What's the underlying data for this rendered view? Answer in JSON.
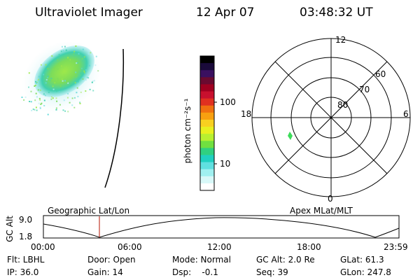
{
  "header": {
    "title": "Ultraviolet Imager",
    "date": "12 Apr 07",
    "time": "03:48:32 UT"
  },
  "colorbar": {
    "label": "photon cm⁻²s⁻¹",
    "ticks": [
      "100",
      "10"
    ],
    "colors": [
      "#000000",
      "#1a0a3a",
      "#3a1060",
      "#6a0a30",
      "#a00020",
      "#c8102e",
      "#e03020",
      "#f07010",
      "#f8a010",
      "#f8d020",
      "#e8f020",
      "#b8f030",
      "#70e040",
      "#30d080",
      "#20d0c0",
      "#60e0e0",
      "#a0f0f0",
      "#d8f8f8",
      "#ffffff"
    ]
  },
  "polar": {
    "mlt_labels": [
      "12",
      "18",
      "6",
      "0"
    ],
    "lat_labels": [
      "60",
      "70",
      "80"
    ]
  },
  "timeline": {
    "left_label": "Geographic Lat/Lon",
    "right_label": "Apex MLat/MLT",
    "axis_title": "GC Alt",
    "y_ticks": [
      "9.0",
      "1.8"
    ],
    "x_ticks": [
      "00:00",
      "06:00",
      "12:00",
      "18:00",
      "23:59"
    ],
    "marker_color": "#c0392b"
  },
  "info": {
    "filter": "Flt: LBHL",
    "door": "Door: Open",
    "mode": "Mode: Normal",
    "gc_alt": "GC Alt: 2.0 Re",
    "glat": "GLat:  61.3",
    "ip": "IP: 36.0",
    "gain": "Gain: 14",
    "dsp": "Dsp:    -0.1",
    "seq": "Seq: 39",
    "glon": "GLon: 247.8"
  }
}
